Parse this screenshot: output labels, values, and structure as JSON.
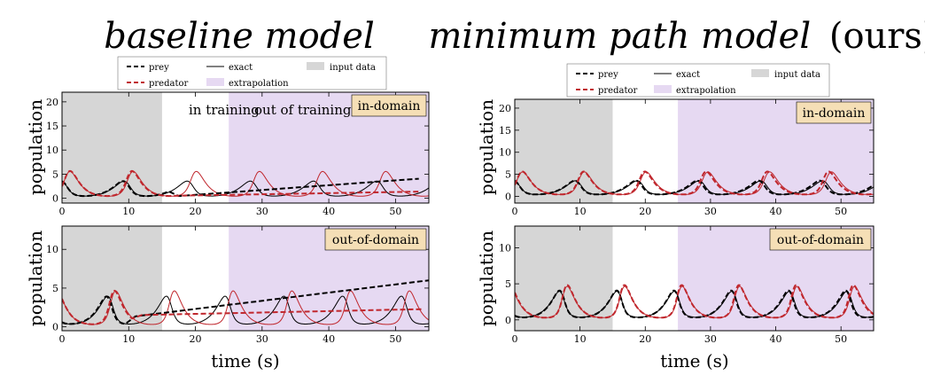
{
  "panel_titles": {
    "left": "baseline model",
    "right_main": "minimum path model",
    "right_suffix": "(ours)"
  },
  "legend": {
    "prey": "prey",
    "predator": "predator",
    "exact": "exact",
    "extrapolation": "extrapolation",
    "input_data": "input data"
  },
  "annotations": {
    "in_training": "in training",
    "out_of_training": "out of training"
  },
  "colors": {
    "prey": "#000000",
    "predator": "#c0272d",
    "exact_prey": "#000000",
    "exact_predator": "#c0272d",
    "input_data": "#d6d6d6",
    "extrapolation": "#e6d9f2",
    "tag_bg": "#f5dfb6"
  },
  "chart_data": [
    {
      "id": "baseline-in-domain",
      "type": "line",
      "title": "baseline model",
      "tag": "in-domain",
      "ylabel": "population",
      "xlabel": "",
      "xlim": [
        0,
        55
      ],
      "ylim": [
        -1,
        22
      ],
      "xticks": [
        0,
        10,
        20,
        30,
        40,
        50
      ],
      "yticks": [
        0,
        5,
        10,
        15,
        20
      ],
      "shaded": [
        {
          "kind": "input_data",
          "x": [
            0,
            15
          ]
        },
        {
          "kind": "extrapolation",
          "x": [
            25,
            55
          ]
        }
      ],
      "exact": {
        "x0": 3.5,
        "y0": 2.5,
        "a": 0.6,
        "b": 0.3,
        "c": 0.9,
        "d": 0.6
      },
      "model": {
        "prey": {
          "kind": "ode",
          "x0": 3.5,
          "y0": 2.5,
          "a": 0.62,
          "b": 0.3,
          "c": 0.9,
          "d": 0.6,
          "until": 16,
          "then_linear": [
            [
              16,
              0.3
            ],
            [
              55,
              4.2
            ]
          ]
        },
        "predator": {
          "kind": "ode",
          "x0": 3.5,
          "y0": 2.5,
          "a": 0.62,
          "b": 0.3,
          "c": 0.9,
          "d": 0.6,
          "until": 16,
          "then_linear": [
            [
              16,
              0.5
            ],
            [
              55,
              1.4
            ]
          ]
        }
      }
    },
    {
      "id": "baseline-out-of-domain",
      "type": "line",
      "tag": "out-of-domain",
      "ylabel": "population",
      "xlabel": "time (s)",
      "xlim": [
        0,
        55
      ],
      "ylim": [
        -0.5,
        13
      ],
      "xticks": [
        0,
        10,
        20,
        30,
        40,
        50
      ],
      "yticks": [
        0,
        5,
        10
      ],
      "shaded": [
        {
          "kind": "input_data",
          "x": [
            0,
            15
          ]
        },
        {
          "kind": "extrapolation",
          "x": [
            25,
            55
          ]
        }
      ],
      "exact": {
        "x0": 0.6,
        "y0": 3.6,
        "a": 0.72,
        "b": 0.45,
        "c": 0.9,
        "d": 0.6
      },
      "model": {
        "prey": {
          "kind": "ode",
          "x0": 0.6,
          "y0": 3.6,
          "a": 0.74,
          "b": 0.45,
          "c": 0.9,
          "d": 0.6,
          "until": 9.5,
          "then_linear": [
            [
              9.5,
              1.2
            ],
            [
              55,
              6.0
            ]
          ]
        },
        "predator": {
          "kind": "ode",
          "x0": 0.6,
          "y0": 3.6,
          "a": 0.74,
          "b": 0.45,
          "c": 0.9,
          "d": 0.6,
          "until": 10.5,
          "then_linear": [
            [
              10.5,
              1.5
            ],
            [
              55,
              2.3
            ]
          ]
        }
      }
    },
    {
      "id": "ours-in-domain",
      "type": "line",
      "title": "minimum path model (ours)",
      "tag": "in-domain",
      "ylabel": "population",
      "xlabel": "",
      "xlim": [
        0,
        55
      ],
      "ylim": [
        -1.5,
        22
      ],
      "xticks": [
        0,
        10,
        20,
        30,
        40,
        50
      ],
      "yticks": [
        0,
        5,
        10,
        15,
        20
      ],
      "shaded": [
        {
          "kind": "input_data",
          "x": [
            0,
            15
          ]
        },
        {
          "kind": "extrapolation",
          "x": [
            25,
            55
          ]
        }
      ],
      "exact": {
        "x0": 3.5,
        "y0": 2.5,
        "a": 0.6,
        "b": 0.3,
        "c": 0.9,
        "d": 0.6
      },
      "model": {
        "prey": {
          "kind": "ode",
          "x0": 3.5,
          "y0": 2.6,
          "a": 0.61,
          "b": 0.3,
          "c": 0.9,
          "d": 0.6
        },
        "predator": {
          "kind": "ode",
          "x0": 3.5,
          "y0": 2.6,
          "a": 0.61,
          "b": 0.3,
          "c": 0.9,
          "d": 0.6
        }
      }
    },
    {
      "id": "ours-out-of-domain",
      "type": "line",
      "tag": "out-of-domain",
      "ylabel": "population",
      "xlabel": "time (s)",
      "xlim": [
        0,
        55
      ],
      "ylim": [
        -1.5,
        13
      ],
      "xticks": [
        0,
        10,
        20,
        30,
        40,
        50
      ],
      "yticks": [
        0,
        5,
        10
      ],
      "shaded": [
        {
          "kind": "input_data",
          "x": [
            0,
            15
          ]
        },
        {
          "kind": "extrapolation",
          "x": [
            25,
            55
          ]
        }
      ],
      "exact": {
        "x0": 0.6,
        "y0": 3.6,
        "a": 0.72,
        "b": 0.45,
        "c": 0.9,
        "d": 0.6
      },
      "model": {
        "prey": {
          "kind": "ode",
          "x0": 0.6,
          "y0": 3.8,
          "a": 0.735,
          "b": 0.45,
          "c": 0.9,
          "d": 0.6
        },
        "predator": {
          "kind": "ode",
          "x0": 0.6,
          "y0": 3.8,
          "a": 0.735,
          "b": 0.45,
          "c": 0.9,
          "d": 0.6
        }
      }
    }
  ]
}
